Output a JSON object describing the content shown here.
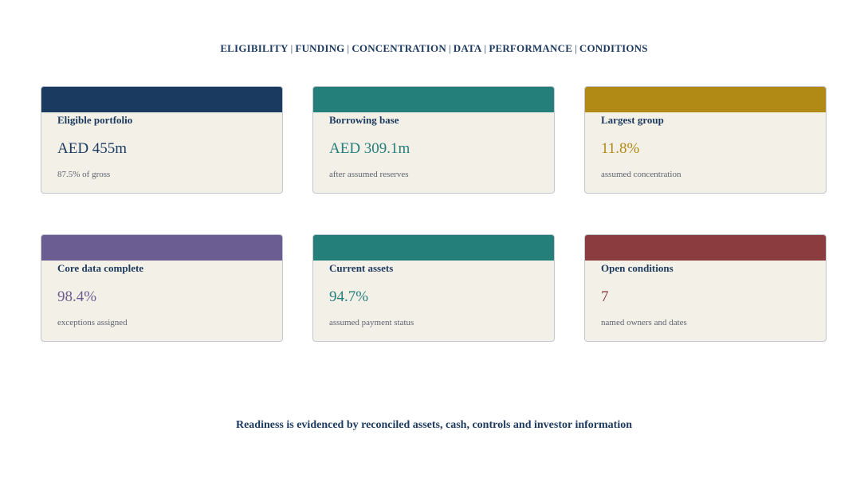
{
  "nav": {
    "items": [
      "ELIGIBILITY",
      "FUNDING",
      "CONCENTRATION",
      "DATA",
      "PERFORMANCE",
      "CONDITIONS"
    ],
    "separator": "|"
  },
  "cards": [
    {
      "label": "Eligible portfolio",
      "value": "AED 455m",
      "sub": "87.5% of gross",
      "color": "#1b3a5f"
    },
    {
      "label": "Borrowing base",
      "value": "AED 309.1m",
      "sub": "after assumed reserves",
      "color": "#247e7a"
    },
    {
      "label": "Largest group",
      "value": "11.8%",
      "sub": "assumed concentration",
      "color": "#b08a14"
    },
    {
      "label": "Core data complete",
      "value": "98.4%",
      "sub": "exceptions assigned",
      "color": "#6b5c92"
    },
    {
      "label": "Current assets",
      "value": "94.7%",
      "sub": "assumed payment status",
      "color": "#247e7a"
    },
    {
      "label": "Open conditions",
      "value": "7",
      "sub": "named owners and dates",
      "color": "#8a3c3e"
    }
  ],
  "footer": {
    "text": "Readiness is evidenced by reconciled assets, cash, controls and investor information"
  }
}
